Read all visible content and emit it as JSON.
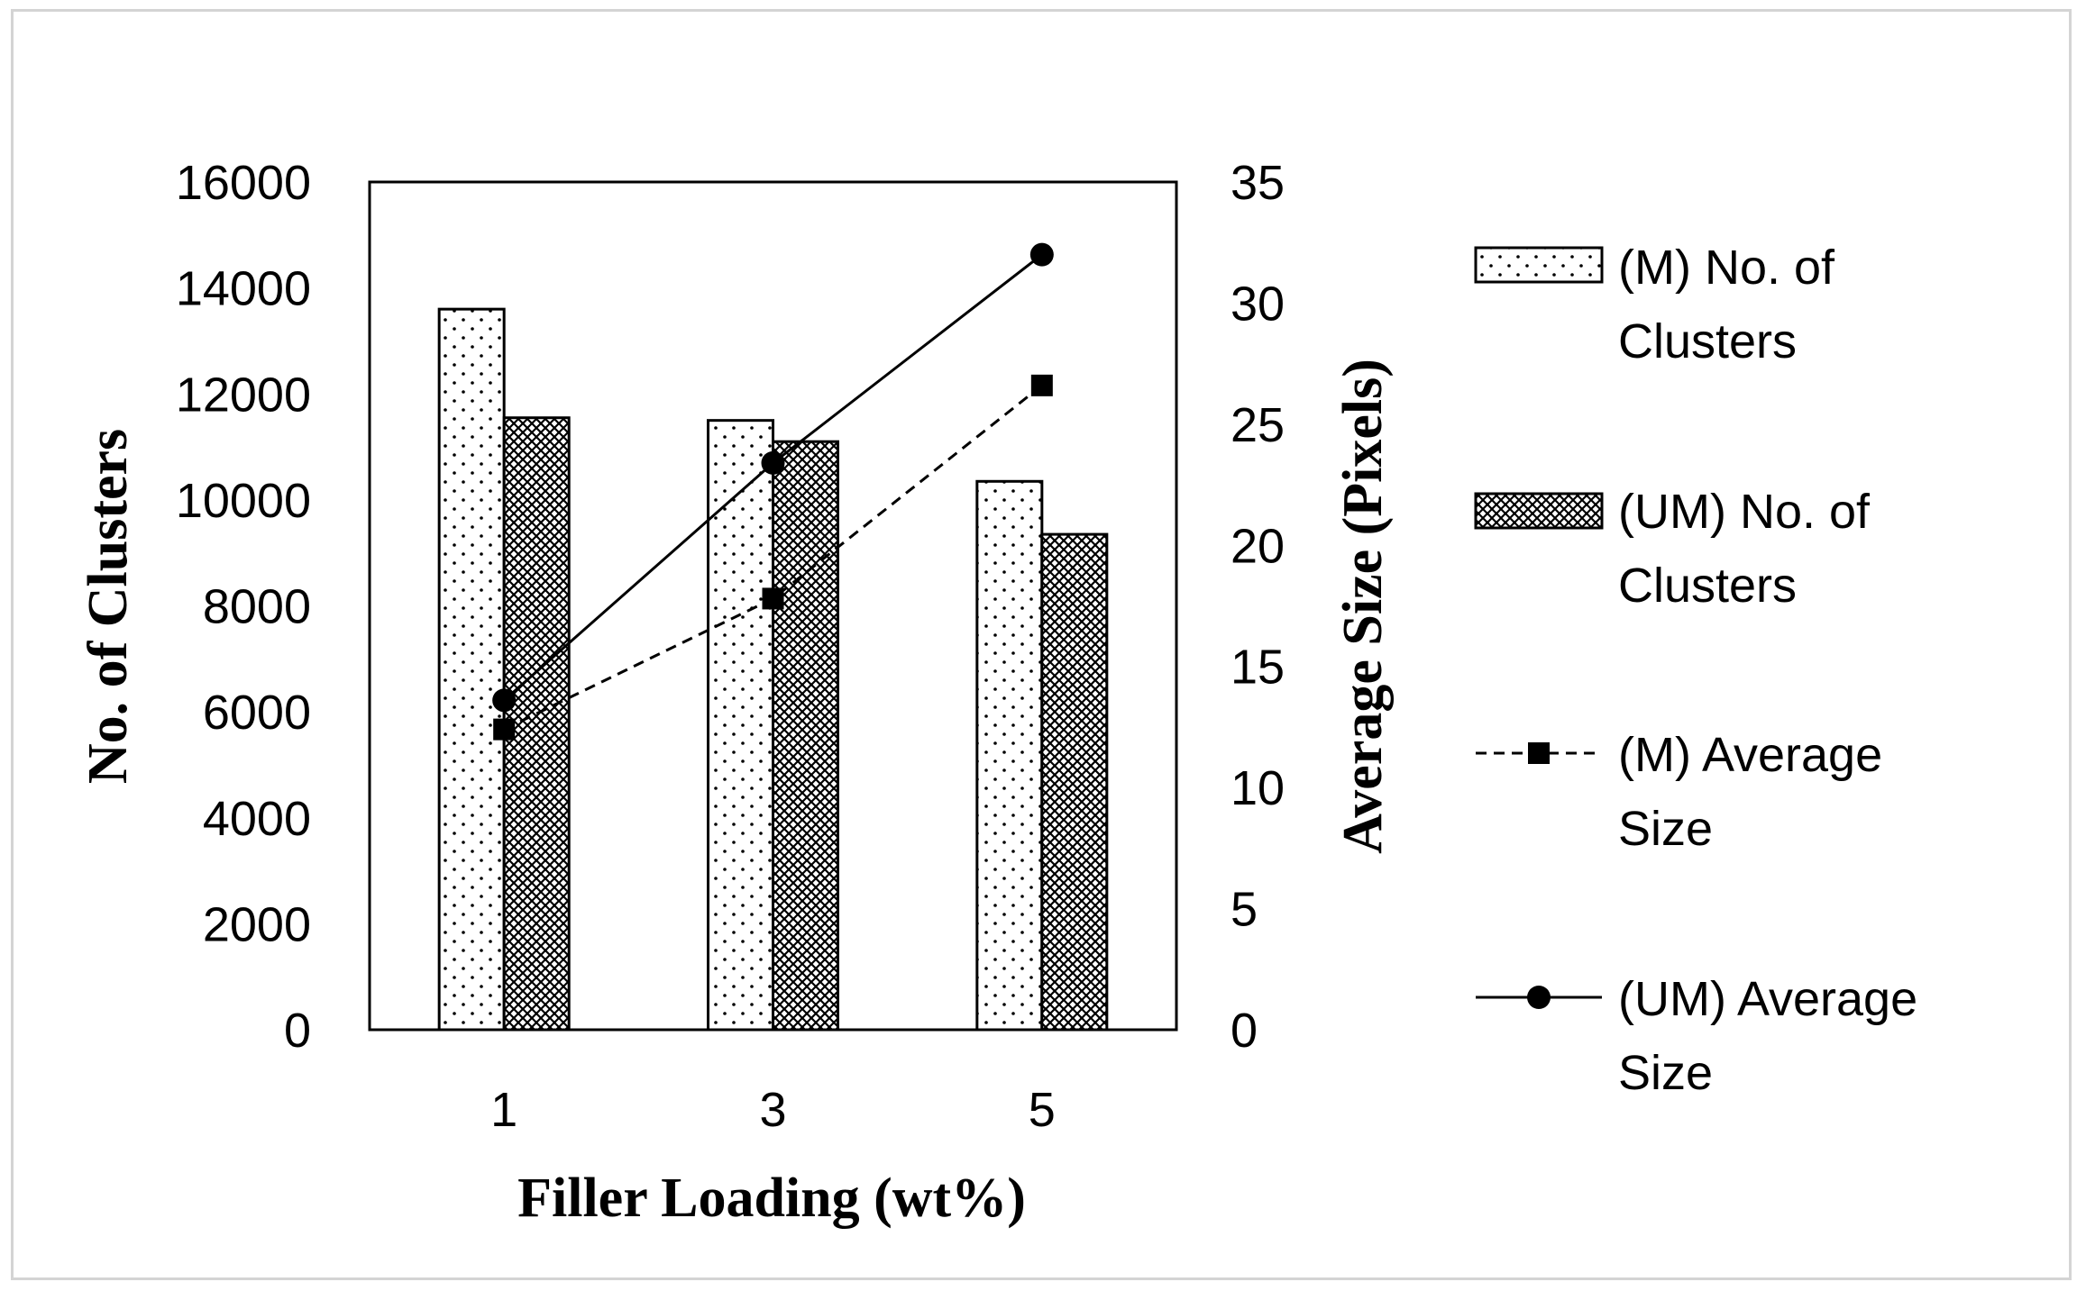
{
  "chart_data": {
    "type": "bar+line",
    "categories": [
      "1",
      "3",
      "5"
    ],
    "xlabel": "Filler Loading (wt%)",
    "ylabel_left": "No. of Clusters",
    "ylabel_right": "Average Size (Pixels)",
    "ylim_left": [
      0,
      16000
    ],
    "ylim_right": [
      0,
      35
    ],
    "yticks_left": [
      "0",
      "2000",
      "4000",
      "6000",
      "8000",
      "10000",
      "12000",
      "14000",
      "16000"
    ],
    "yticks_right": [
      "0",
      "5",
      "10",
      "15",
      "20",
      "25",
      "30",
      "35"
    ],
    "bar_series": [
      {
        "name_line1": "(M) No. of",
        "name_line2": "Clusters",
        "pattern": "dots",
        "values": [
          13600,
          11500,
          10350
        ]
      },
      {
        "name_line1": "(UM) No. of",
        "name_line2": "Clusters",
        "pattern": "crosshatch",
        "values": [
          11550,
          11100,
          9350
        ]
      }
    ],
    "line_series": [
      {
        "name_line1": "(M) Average",
        "name_line2": "Size",
        "style": "dashed",
        "marker": "square",
        "values": [
          12.4,
          17.8,
          26.6
        ]
      },
      {
        "name_line1": "(UM) Average",
        "name_line2": "Size",
        "style": "solid",
        "marker": "circle",
        "values": [
          13.6,
          23.4,
          32.0
        ]
      }
    ],
    "grid": false,
    "legend_position": "right"
  }
}
